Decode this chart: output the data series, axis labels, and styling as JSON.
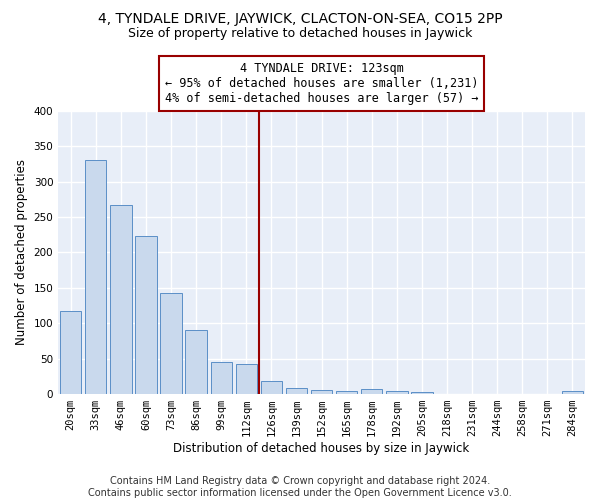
{
  "title": "4, TYNDALE DRIVE, JAYWICK, CLACTON-ON-SEA, CO15 2PP",
  "subtitle": "Size of property relative to detached houses in Jaywick",
  "xlabel": "Distribution of detached houses by size in Jaywick",
  "ylabel": "Number of detached properties",
  "bar_color": "#c9d9ed",
  "bar_edge_color": "#5b8fc7",
  "background_color": "#e8eef8",
  "grid_color": "#d0d8e8",
  "fig_color": "#ffffff",
  "annotation_text": "4 TYNDALE DRIVE: 123sqm\n← 95% of detached houses are smaller (1,231)\n4% of semi-detached houses are larger (57) →",
  "vline_color": "#990000",
  "categories": [
    "20sqm",
    "33sqm",
    "46sqm",
    "60sqm",
    "73sqm",
    "86sqm",
    "99sqm",
    "112sqm",
    "126sqm",
    "139sqm",
    "152sqm",
    "165sqm",
    "178sqm",
    "192sqm",
    "205sqm",
    "218sqm",
    "231sqm",
    "244sqm",
    "258sqm",
    "271sqm",
    "284sqm"
  ],
  "values": [
    117,
    331,
    267,
    223,
    142,
    90,
    45,
    42,
    18,
    9,
    6,
    5,
    7,
    4,
    3,
    0,
    0,
    0,
    0,
    0,
    5
  ],
  "ylim": [
    0,
    400
  ],
  "yticks": [
    0,
    50,
    100,
    150,
    200,
    250,
    300,
    350,
    400
  ],
  "footer": "Contains HM Land Registry data © Crown copyright and database right 2024.\nContains public sector information licensed under the Open Government Licence v3.0.",
  "footer_fontsize": 7,
  "title_fontsize": 10,
  "subtitle_fontsize": 9,
  "xlabel_fontsize": 8.5,
  "ylabel_fontsize": 8.5,
  "tick_fontsize": 7.5,
  "annot_fontsize": 8.5
}
